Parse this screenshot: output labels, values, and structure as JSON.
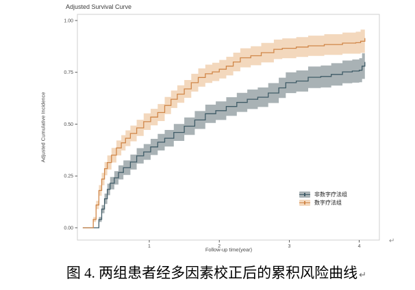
{
  "figure": {
    "paragraph_mark": "↵"
  },
  "caption": {
    "text": "图 4. 两组患者经多因素校正后的累积风险曲线",
    "paragraph_mark": "↵"
  },
  "chart_data": {
    "type": "line",
    "subtype": "adjusted-cumulative-incidence-step-curves-with-confidence-bands",
    "title": "Adjusted Survival Curve",
    "xlabel": "Follow-up time(year)",
    "ylabel": "Adjusted Cumulative Incidence",
    "xlim": [
      0,
      4.3
    ],
    "ylim": [
      0,
      1.0
    ],
    "x_ticks": [
      1,
      2,
      3,
      4
    ],
    "x_tick_labels": [
      "1",
      "2",
      "3",
      "4"
    ],
    "y_ticks": [
      0,
      0.25,
      0.5,
      0.75,
      1.0
    ],
    "y_tick_labels": [
      "0.00",
      "0.25",
      "0.50",
      "0.75",
      "1.00"
    ],
    "grid": false,
    "legend_position": "inside-right-lower",
    "colors": {
      "panel_border": "#cfcfcf",
      "tick_mark": "#333333",
      "tick_label": "#4d4d4d",
      "background": "#ffffff"
    },
    "series": [
      {
        "name": "非数字疗法组",
        "color": "#3f5b66",
        "band_color": "#a9b2b5",
        "points_format": "[time_years, incidence, ci_halfwidth]",
        "points": [
          [
            0.05,
            0,
            0
          ],
          [
            0.24,
            0,
            0
          ],
          [
            0.28,
            0.04,
            0.012
          ],
          [
            0.32,
            0.09,
            0.02
          ],
          [
            0.36,
            0.14,
            0.025
          ],
          [
            0.4,
            0.185,
            0.028
          ],
          [
            0.44,
            0.215,
            0.03
          ],
          [
            0.5,
            0.241,
            0.032
          ],
          [
            0.56,
            0.267,
            0.034
          ],
          [
            0.63,
            0.29,
            0.035
          ],
          [
            0.73,
            0.317,
            0.036
          ],
          [
            0.82,
            0.347,
            0.037
          ],
          [
            0.92,
            0.366,
            0.038
          ],
          [
            1.02,
            0.39,
            0.039
          ],
          [
            1.12,
            0.413,
            0.04
          ],
          [
            1.22,
            0.432,
            0.04
          ],
          [
            1.35,
            0.46,
            0.041
          ],
          [
            1.5,
            0.49,
            0.042
          ],
          [
            1.65,
            0.52,
            0.043
          ],
          [
            1.8,
            0.55,
            0.044
          ],
          [
            1.95,
            0.565,
            0.045
          ],
          [
            2.1,
            0.585,
            0.045
          ],
          [
            2.25,
            0.605,
            0.046
          ],
          [
            2.4,
            0.62,
            0.047
          ],
          [
            2.55,
            0.63,
            0.047
          ],
          [
            2.7,
            0.65,
            0.048
          ],
          [
            2.85,
            0.675,
            0.049
          ],
          [
            2.95,
            0.7,
            0.05
          ],
          [
            3.1,
            0.708,
            0.051
          ],
          [
            3.27,
            0.726,
            0.052
          ],
          [
            3.45,
            0.73,
            0.053
          ],
          [
            3.6,
            0.74,
            0.054
          ],
          [
            3.76,
            0.752,
            0.055
          ],
          [
            3.9,
            0.756,
            0.056
          ],
          [
            4.0,
            0.76,
            0.058
          ],
          [
            4.04,
            0.78,
            0.062
          ],
          [
            4.08,
            0.8,
            0.068
          ]
        ]
      },
      {
        "name": "数字疗法组",
        "color": "#d08648",
        "band_color": "#f3d8bd",
        "points_format": "[time_years, incidence, ci_halfwidth]",
        "points": [
          [
            0.05,
            0,
            0
          ],
          [
            0.17,
            0,
            0
          ],
          [
            0.2,
            0.04,
            0.012
          ],
          [
            0.24,
            0.11,
            0.02
          ],
          [
            0.28,
            0.18,
            0.026
          ],
          [
            0.32,
            0.235,
            0.03
          ],
          [
            0.36,
            0.285,
            0.032
          ],
          [
            0.4,
            0.315,
            0.034
          ],
          [
            0.46,
            0.35,
            0.035
          ],
          [
            0.53,
            0.385,
            0.036
          ],
          [
            0.6,
            0.41,
            0.037
          ],
          [
            0.66,
            0.432,
            0.038
          ],
          [
            0.73,
            0.455,
            0.038
          ],
          [
            0.82,
            0.482,
            0.039
          ],
          [
            0.92,
            0.512,
            0.04
          ],
          [
            1.02,
            0.534,
            0.04
          ],
          [
            1.12,
            0.556,
            0.041
          ],
          [
            1.22,
            0.59,
            0.041
          ],
          [
            1.31,
            0.62,
            0.042
          ],
          [
            1.4,
            0.645,
            0.042
          ],
          [
            1.5,
            0.67,
            0.043
          ],
          [
            1.6,
            0.7,
            0.043
          ],
          [
            1.7,
            0.725,
            0.044
          ],
          [
            1.8,
            0.743,
            0.044
          ],
          [
            1.9,
            0.752,
            0.044
          ],
          [
            2.0,
            0.765,
            0.045
          ],
          [
            2.1,
            0.78,
            0.045
          ],
          [
            2.2,
            0.8,
            0.045
          ],
          [
            2.3,
            0.82,
            0.046
          ],
          [
            2.45,
            0.83,
            0.046
          ],
          [
            2.6,
            0.845,
            0.047
          ],
          [
            2.78,
            0.861,
            0.047
          ],
          [
            2.9,
            0.866,
            0.048
          ],
          [
            3.1,
            0.872,
            0.048
          ],
          [
            3.27,
            0.878,
            0.049
          ],
          [
            3.5,
            0.884,
            0.05
          ],
          [
            3.76,
            0.891,
            0.051
          ],
          [
            3.95,
            0.893,
            0.053
          ],
          [
            4.02,
            0.9,
            0.056
          ],
          [
            4.08,
            0.915,
            0.06
          ]
        ]
      }
    ]
  }
}
